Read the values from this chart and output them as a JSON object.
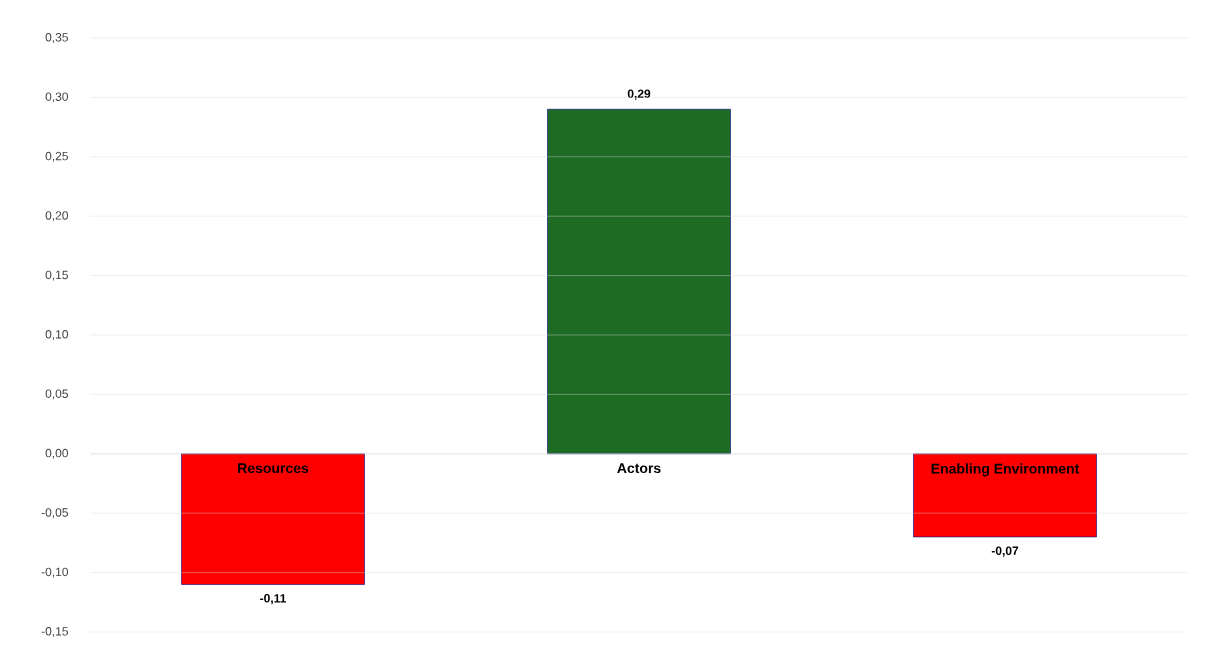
{
  "chart_data": {
    "type": "bar",
    "categories": [
      "Resources",
      "Actors",
      "Enabling Environment"
    ],
    "values": [
      -0.11,
      0.29,
      -0.07
    ],
    "colors": [
      "#ff0000",
      "#1e6b24",
      "#ff0000"
    ],
    "value_labels": [
      "-0,11",
      "0,29",
      "-0,07"
    ],
    "ylim": [
      -0.15,
      0.35
    ],
    "yticks": [
      {
        "value": -0.15,
        "label": "-0,15"
      },
      {
        "value": -0.1,
        "label": "-0,10"
      },
      {
        "value": -0.05,
        "label": "-0,05"
      },
      {
        "value": 0,
        "label": "0,00"
      },
      {
        "value": 0.05,
        "label": "0,05"
      },
      {
        "value": 0.1,
        "label": "0,10"
      },
      {
        "value": 0.15,
        "label": "0,15"
      },
      {
        "value": 0.2,
        "label": "0,20"
      },
      {
        "value": 0.25,
        "label": "0,25"
      },
      {
        "value": 0.3,
        "label": "0,30"
      },
      {
        "value": 0.35,
        "label": "0,35"
      }
    ],
    "grid": "y"
  }
}
